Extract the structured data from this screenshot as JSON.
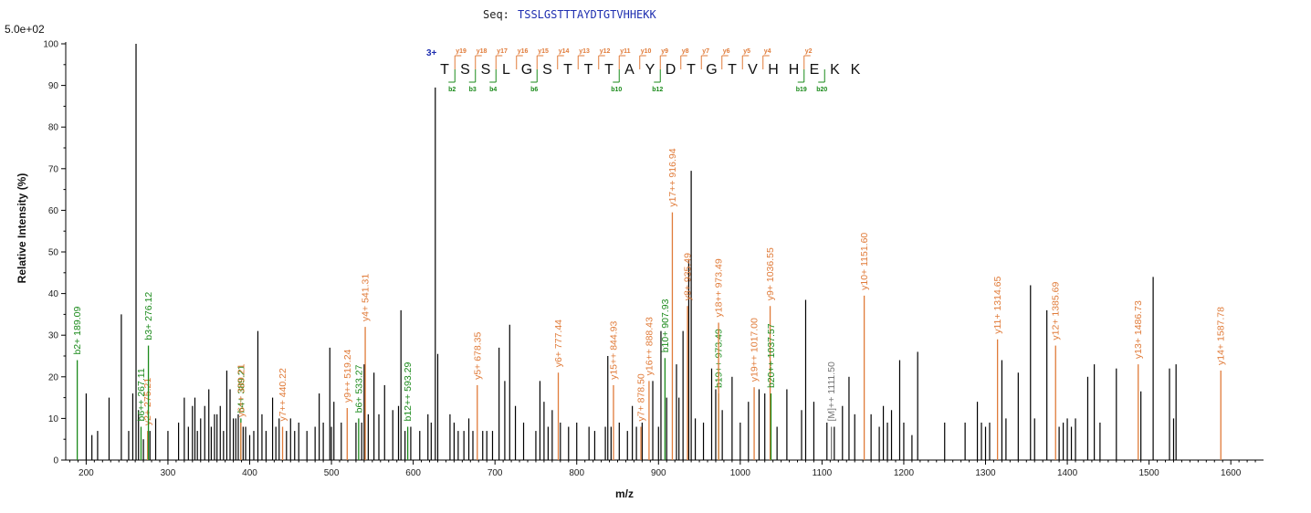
{
  "header": {
    "seq_label": "Seq:",
    "seq_value": "TSSLGSTTTAYDTGTVHHEKK",
    "scale_label": "5.0e+02"
  },
  "colors": {
    "y_ion": "#e07b39",
    "b_ion": "#1a8a1a",
    "precursor": "#777777",
    "peak": "#000000",
    "charge": "#1f2fb0"
  },
  "chart_data": {
    "type": "bar",
    "title": "",
    "xlabel": "m/z",
    "ylabel": "Relative  Intensity (%)",
    "xlim": [
      175,
      1640
    ],
    "ylim": [
      0,
      100
    ],
    "xticks": [
      200,
      300,
      400,
      500,
      600,
      700,
      800,
      900,
      1000,
      1100,
      1200,
      1300,
      1400,
      1500,
      1600
    ],
    "yticks": [
      0,
      10,
      20,
      30,
      40,
      50,
      60,
      70,
      80,
      90,
      100
    ],
    "peptide": {
      "charge_label": "3+",
      "residues": [
        "T",
        "S",
        "S",
        "L",
        "G",
        "S",
        "T",
        "T",
        "T",
        "A",
        "Y",
        "D",
        "T",
        "G",
        "T",
        "V",
        "H",
        "H",
        "E",
        "K",
        "K"
      ],
      "y_ions": [
        {
          "after": 1,
          "label": "y19"
        },
        {
          "after": 2,
          "label": "y18"
        },
        {
          "after": 3,
          "label": "y17"
        },
        {
          "after": 4,
          "label": "y16"
        },
        {
          "after": 5,
          "label": "y15"
        },
        {
          "after": 6,
          "label": "y14"
        },
        {
          "after": 7,
          "label": "y13"
        },
        {
          "after": 8,
          "label": "y12"
        },
        {
          "after": 9,
          "label": "y11"
        },
        {
          "after": 10,
          "label": "y10"
        },
        {
          "after": 11,
          "label": "y9"
        },
        {
          "after": 12,
          "label": "y8"
        },
        {
          "after": 13,
          "label": "y7"
        },
        {
          "after": 14,
          "label": "y6"
        },
        {
          "after": 15,
          "label": "y5"
        },
        {
          "after": 16,
          "label": "y4"
        },
        {
          "after": 18,
          "label": "y2"
        }
      ],
      "b_ions": [
        {
          "after": 1,
          "label": "b2"
        },
        {
          "after": 2,
          "label": "b3"
        },
        {
          "after": 3,
          "label": "b4"
        },
        {
          "after": 5,
          "label": "b6"
        },
        {
          "after": 9,
          "label": "b10"
        },
        {
          "after": 11,
          "label": "b12"
        },
        {
          "after": 18,
          "label": "b19"
        },
        {
          "after": 19,
          "label": "b20"
        }
      ]
    },
    "annotated_peaks": [
      {
        "mz": 189.09,
        "intensity": 24,
        "ion": "b",
        "label": "b2+ 189.09"
      },
      {
        "mz": 267.11,
        "intensity": 8,
        "ion": "b",
        "label": "b6++ 267.11"
      },
      {
        "mz": 275.21,
        "intensity": 7,
        "ion": "y",
        "label": "y2+ 275.21"
      },
      {
        "mz": 276.12,
        "intensity": 27.5,
        "ion": "b",
        "label": "b3+ 276.12"
      },
      {
        "mz": 389.21,
        "intensity": 10,
        "ion": "b",
        "label": "b4+ 389.21"
      },
      {
        "mz": 389.21,
        "intensity": 9,
        "ion": "y",
        "label": "y6++ 389.21"
      },
      {
        "mz": 440.22,
        "intensity": 8,
        "ion": "y",
        "label": "y7++ 440.22"
      },
      {
        "mz": 519.24,
        "intensity": 12.5,
        "ion": "y",
        "label": "y9++ 519.24"
      },
      {
        "mz": 533.27,
        "intensity": 10,
        "ion": "b",
        "label": "b6+ 533.27"
      },
      {
        "mz": 541.31,
        "intensity": 32,
        "ion": "y",
        "label": "y4+ 541.31"
      },
      {
        "mz": 593.29,
        "intensity": 8,
        "ion": "b",
        "label": "b12++ 593.29"
      },
      {
        "mz": 678.35,
        "intensity": 18,
        "ion": "y",
        "label": "y5+ 678.35"
      },
      {
        "mz": 777.44,
        "intensity": 21,
        "ion": "y",
        "label": "y6+ 777.44"
      },
      {
        "mz": 844.93,
        "intensity": 18,
        "ion": "y",
        "label": "y15++ 844.93"
      },
      {
        "mz": 878.5,
        "intensity": 8,
        "ion": "y",
        "label": "y7+ 878.50"
      },
      {
        "mz": 888.43,
        "intensity": 19,
        "ion": "y",
        "label": "y16++ 888.43"
      },
      {
        "mz": 907.93,
        "intensity": 24.5,
        "ion": "b",
        "label": "b10+ 907.93"
      },
      {
        "mz": 916.94,
        "intensity": 59.5,
        "ion": "y",
        "label": "y17++ 916.94"
      },
      {
        "mz": 935.49,
        "intensity": 37,
        "ion": "y",
        "label": "y8+ 935.49"
      },
      {
        "mz": 973.49,
        "intensity": 16,
        "ion": "b",
        "label": "b19++ 973.49"
      },
      {
        "mz": 973.49,
        "intensity": 33,
        "ion": "y",
        "label": "y18++ 973.49"
      },
      {
        "mz": 1017.0,
        "intensity": 17.5,
        "ion": "y",
        "label": "y19++ 1017.00"
      },
      {
        "mz": 1036.55,
        "intensity": 37,
        "ion": "y",
        "label": "y9+ 1036.55"
      },
      {
        "mz": 1037.57,
        "intensity": 16,
        "ion": "b",
        "label": "b20++ 1037.57"
      },
      {
        "mz": 1111.5,
        "intensity": 8,
        "ion": "precursor",
        "label": "[M]++ 1111.50"
      },
      {
        "mz": 1151.6,
        "intensity": 39.5,
        "ion": "y",
        "label": "y10+ 1151.60"
      },
      {
        "mz": 1314.65,
        "intensity": 29,
        "ion": "y",
        "label": "y11+ 1314.65"
      },
      {
        "mz": 1385.69,
        "intensity": 27.5,
        "ion": "y",
        "label": "y12+ 1385.69"
      },
      {
        "mz": 1486.73,
        "intensity": 23,
        "ion": "y",
        "label": "y13+ 1486.73"
      },
      {
        "mz": 1587.78,
        "intensity": 21.5,
        "ion": "y",
        "label": "y14+ 1587.78"
      }
    ],
    "peaks": [
      [
        200,
        16
      ],
      [
        207,
        6
      ],
      [
        214,
        7
      ],
      [
        228,
        15
      ],
      [
        243,
        35
      ],
      [
        252,
        7
      ],
      [
        257,
        16
      ],
      [
        261,
        100
      ],
      [
        264,
        12
      ],
      [
        270,
        5
      ],
      [
        278,
        7
      ],
      [
        285,
        10
      ],
      [
        300,
        7
      ],
      [
        313,
        9
      ],
      [
        320,
        15
      ],
      [
        325,
        8
      ],
      [
        330,
        13
      ],
      [
        333,
        15
      ],
      [
        336,
        7
      ],
      [
        340,
        10
      ],
      [
        345,
        13
      ],
      [
        350,
        17
      ],
      [
        353,
        8
      ],
      [
        357,
        11
      ],
      [
        360,
        11
      ],
      [
        364,
        13
      ],
      [
        368,
        7
      ],
      [
        372,
        21.5
      ],
      [
        376,
        17
      ],
      [
        380,
        10
      ],
      [
        383,
        10
      ],
      [
        386,
        11
      ],
      [
        392,
        8
      ],
      [
        395,
        8
      ],
      [
        400,
        6
      ],
      [
        405,
        7
      ],
      [
        410,
        31
      ],
      [
        415,
        11
      ],
      [
        420,
        7
      ],
      [
        428,
        15
      ],
      [
        432,
        8
      ],
      [
        436,
        10
      ],
      [
        445,
        7
      ],
      [
        450,
        10
      ],
      [
        455,
        7
      ],
      [
        460,
        9
      ],
      [
        470,
        7
      ],
      [
        480,
        8
      ],
      [
        485,
        16
      ],
      [
        490,
        9
      ],
      [
        498,
        27
      ],
      [
        500,
        8
      ],
      [
        503,
        14
      ],
      [
        512,
        9
      ],
      [
        530,
        9
      ],
      [
        537,
        9
      ],
      [
        540,
        23
      ],
      [
        545,
        11
      ],
      [
        552,
        21
      ],
      [
        558,
        11
      ],
      [
        565,
        18
      ],
      [
        575,
        12
      ],
      [
        582,
        13
      ],
      [
        585,
        36
      ],
      [
        590,
        7
      ],
      [
        597,
        8
      ],
      [
        608,
        7
      ],
      [
        618,
        11
      ],
      [
        622,
        9
      ],
      [
        627,
        89.5
      ],
      [
        630,
        25.5
      ],
      [
        645,
        11
      ],
      [
        650,
        9
      ],
      [
        655,
        7
      ],
      [
        662,
        7
      ],
      [
        668,
        10
      ],
      [
        673,
        7
      ],
      [
        685,
        7
      ],
      [
        690,
        7
      ],
      [
        697,
        7
      ],
      [
        705,
        27
      ],
      [
        712,
        19
      ],
      [
        718,
        32.5
      ],
      [
        725,
        13
      ],
      [
        735,
        9
      ],
      [
        750,
        7
      ],
      [
        755,
        19
      ],
      [
        760,
        14
      ],
      [
        765,
        8
      ],
      [
        770,
        12
      ],
      [
        780,
        9
      ],
      [
        790,
        8
      ],
      [
        800,
        9
      ],
      [
        815,
        8
      ],
      [
        822,
        7
      ],
      [
        835,
        8
      ],
      [
        838,
        25
      ],
      [
        842,
        8
      ],
      [
        852,
        9
      ],
      [
        862,
        7
      ],
      [
        868,
        13
      ],
      [
        873,
        8
      ],
      [
        880,
        9
      ],
      [
        893,
        19
      ],
      [
        900,
        8
      ],
      [
        903,
        31
      ],
      [
        910,
        15
      ],
      [
        922,
        23
      ],
      [
        925,
        15
      ],
      [
        930,
        31
      ],
      [
        937,
        48
      ],
      [
        940,
        69.5
      ],
      [
        945,
        10
      ],
      [
        955,
        9
      ],
      [
        965,
        22
      ],
      [
        970,
        17
      ],
      [
        978,
        12
      ],
      [
        990,
        20
      ],
      [
        1000,
        9
      ],
      [
        1010,
        14
      ],
      [
        1023,
        17
      ],
      [
        1030,
        16
      ],
      [
        1045,
        8
      ],
      [
        1057,
        17
      ],
      [
        1075,
        12
      ],
      [
        1080,
        38.5
      ],
      [
        1090,
        14
      ],
      [
        1106,
        9
      ],
      [
        1115,
        8
      ],
      [
        1125,
        13
      ],
      [
        1133,
        20
      ],
      [
        1140,
        11
      ],
      [
        1160,
        11
      ],
      [
        1170,
        8
      ],
      [
        1175,
        13
      ],
      [
        1180,
        9
      ],
      [
        1185,
        12
      ],
      [
        1195,
        24
      ],
      [
        1200,
        9
      ],
      [
        1210,
        6
      ],
      [
        1217,
        26
      ],
      [
        1250,
        9
      ],
      [
        1275,
        9
      ],
      [
        1290,
        14
      ],
      [
        1295,
        9
      ],
      [
        1300,
        8
      ],
      [
        1305,
        9
      ],
      [
        1320,
        24
      ],
      [
        1325,
        10
      ],
      [
        1340,
        21
      ],
      [
        1355,
        42
      ],
      [
        1360,
        10
      ],
      [
        1375,
        36
      ],
      [
        1390,
        8
      ],
      [
        1395,
        9
      ],
      [
        1400,
        10
      ],
      [
        1405,
        8
      ],
      [
        1410,
        10
      ],
      [
        1425,
        20
      ],
      [
        1433,
        23
      ],
      [
        1440,
        9
      ],
      [
        1460,
        22
      ],
      [
        1490,
        16.5
      ],
      [
        1505,
        44
      ],
      [
        1525,
        22
      ],
      [
        1530,
        10
      ],
      [
        1533,
        23
      ]
    ]
  }
}
